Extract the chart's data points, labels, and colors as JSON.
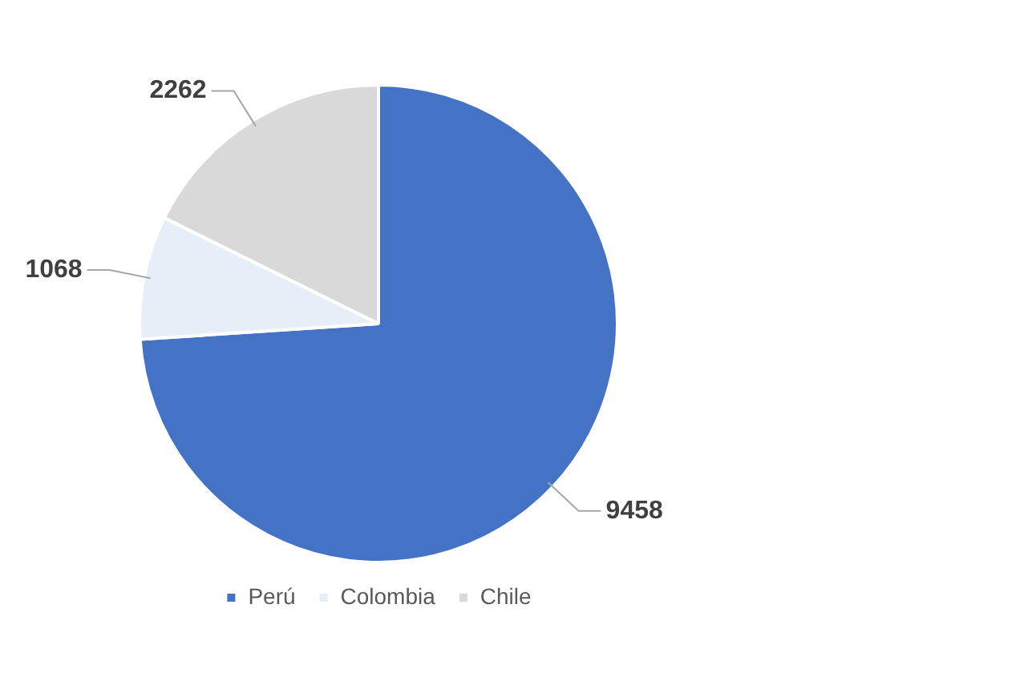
{
  "chart_data": {
    "type": "pie",
    "categories": [
      "Perú",
      "Colombia",
      "Chile"
    ],
    "values": [
      9458,
      1068,
      2262
    ],
    "colors": [
      "#4472c4",
      "#e7eef8",
      "#d9d9d9"
    ],
    "data_labels": true,
    "legend": "bottom"
  }
}
